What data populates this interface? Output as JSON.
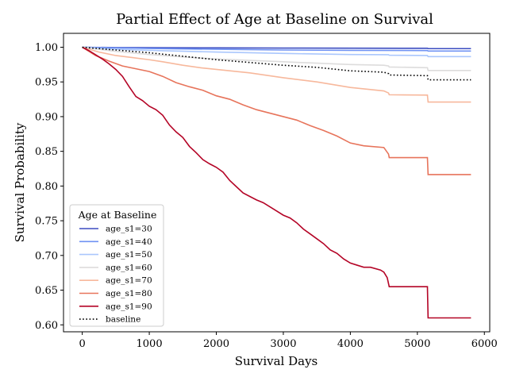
{
  "chart_data": {
    "type": "line",
    "title": "Partial Effect of Age at Baseline on Survival",
    "xlabel": "Survival Days",
    "ylabel": "Survival Probability",
    "xlim": [
      -280,
      6080
    ],
    "ylim": [
      0.59,
      1.02
    ],
    "xticks": [
      0,
      1000,
      2000,
      3000,
      4000,
      5000,
      6000
    ],
    "yticks": [
      0.6,
      0.65,
      0.7,
      0.75,
      0.8,
      0.85,
      0.9,
      0.95,
      1.0
    ],
    "xtick_labels": [
      "0",
      "1000",
      "2000",
      "3000",
      "4000",
      "5000",
      "6000"
    ],
    "ytick_labels": [
      "0.60",
      "0.65",
      "0.70",
      "0.75",
      "0.80",
      "0.85",
      "0.90",
      "0.95",
      "1.00"
    ],
    "grid": false,
    "legend": {
      "title": "Age at Baseline",
      "position": "lower-left"
    },
    "series": [
      {
        "name": "age_s1=30",
        "color": "#3b4cc0",
        "dash": "solid",
        "points": [
          [
            0,
            1.0
          ],
          [
            500,
            0.9995
          ],
          [
            1000,
            0.9993
          ],
          [
            2000,
            0.999
          ],
          [
            3000,
            0.9988
          ],
          [
            4000,
            0.9986
          ],
          [
            5150,
            0.9985
          ],
          [
            5160,
            0.998
          ],
          [
            5800,
            0.998
          ]
        ]
      },
      {
        "name": "age_s1=40",
        "color": "#6f92f3",
        "dash": "solid",
        "points": [
          [
            0,
            1.0
          ],
          [
            500,
            0.999
          ],
          [
            1000,
            0.9982
          ],
          [
            2000,
            0.997
          ],
          [
            3000,
            0.996
          ],
          [
            4000,
            0.9955
          ],
          [
            5150,
            0.9952
          ],
          [
            5160,
            0.9945
          ],
          [
            5800,
            0.9945
          ]
        ]
      },
      {
        "name": "age_s1=50",
        "color": "#aac7fd",
        "dash": "solid",
        "points": [
          [
            0,
            1.0
          ],
          [
            500,
            0.997
          ],
          [
            1000,
            0.9955
          ],
          [
            2000,
            0.993
          ],
          [
            3000,
            0.991
          ],
          [
            4000,
            0.9895
          ],
          [
            4570,
            0.9892
          ],
          [
            4580,
            0.9885
          ],
          [
            5150,
            0.988
          ],
          [
            5160,
            0.9865
          ],
          [
            5800,
            0.9865
          ]
        ]
      },
      {
        "name": "age_s1=60",
        "color": "#dddcdc",
        "dash": "solid",
        "points": [
          [
            0,
            1.0
          ],
          [
            500,
            0.994
          ],
          [
            1000,
            0.9895
          ],
          [
            1500,
            0.986
          ],
          [
            2000,
            0.983
          ],
          [
            2500,
            0.981
          ],
          [
            3000,
            0.979
          ],
          [
            3500,
            0.977
          ],
          [
            4000,
            0.975
          ],
          [
            4500,
            0.974
          ],
          [
            4570,
            0.973
          ],
          [
            4580,
            0.9715
          ],
          [
            5150,
            0.9705
          ],
          [
            5160,
            0.9665
          ],
          [
            5800,
            0.9665
          ]
        ]
      },
      {
        "name": "age_s1=70",
        "color": "#f7b89c",
        "dash": "solid",
        "points": [
          [
            0,
            1.0
          ],
          [
            250,
            0.993
          ],
          [
            500,
            0.988
          ],
          [
            750,
            0.985
          ],
          [
            1000,
            0.982
          ],
          [
            1200,
            0.979
          ],
          [
            1500,
            0.974
          ],
          [
            1800,
            0.97
          ],
          [
            2000,
            0.968
          ],
          [
            2500,
            0.963
          ],
          [
            3000,
            0.956
          ],
          [
            3500,
            0.95
          ],
          [
            4000,
            0.942
          ],
          [
            4200,
            0.94
          ],
          [
            4500,
            0.937
          ],
          [
            4570,
            0.934
          ],
          [
            4580,
            0.9315
          ],
          [
            5150,
            0.931
          ],
          [
            5160,
            0.921
          ],
          [
            5800,
            0.921
          ]
        ]
      },
      {
        "name": "age_s1=80",
        "color": "#e7745b",
        "dash": "solid",
        "points": [
          [
            0,
            1.0
          ],
          [
            200,
            0.988
          ],
          [
            400,
            0.98
          ],
          [
            600,
            0.973
          ],
          [
            800,
            0.969
          ],
          [
            1000,
            0.965
          ],
          [
            1200,
            0.958
          ],
          [
            1400,
            0.949
          ],
          [
            1600,
            0.943
          ],
          [
            1800,
            0.938
          ],
          [
            2000,
            0.93
          ],
          [
            2200,
            0.925
          ],
          [
            2400,
            0.917
          ],
          [
            2600,
            0.91
          ],
          [
            2800,
            0.905
          ],
          [
            3000,
            0.9
          ],
          [
            3200,
            0.895
          ],
          [
            3400,
            0.887
          ],
          [
            3600,
            0.88
          ],
          [
            3800,
            0.872
          ],
          [
            4000,
            0.862
          ],
          [
            4200,
            0.858
          ],
          [
            4500,
            0.8555
          ],
          [
            4570,
            0.846
          ],
          [
            4580,
            0.841
          ],
          [
            5150,
            0.841
          ],
          [
            5160,
            0.8165
          ],
          [
            5800,
            0.8165
          ]
        ]
      },
      {
        "name": "age_s1=90",
        "color": "#b40426",
        "dash": "solid",
        "points": [
          [
            0,
            1.0
          ],
          [
            100,
            0.995
          ],
          [
            200,
            0.989
          ],
          [
            300,
            0.983
          ],
          [
            400,
            0.976
          ],
          [
            500,
            0.968
          ],
          [
            600,
            0.958
          ],
          [
            700,
            0.943
          ],
          [
            800,
            0.929
          ],
          [
            900,
            0.923
          ],
          [
            1000,
            0.915
          ],
          [
            1100,
            0.91
          ],
          [
            1200,
            0.902
          ],
          [
            1300,
            0.888
          ],
          [
            1400,
            0.878
          ],
          [
            1500,
            0.87
          ],
          [
            1600,
            0.857
          ],
          [
            1700,
            0.848
          ],
          [
            1800,
            0.838
          ],
          [
            1900,
            0.832
          ],
          [
            2000,
            0.827
          ],
          [
            2100,
            0.82
          ],
          [
            2200,
            0.808
          ],
          [
            2300,
            0.799
          ],
          [
            2400,
            0.79
          ],
          [
            2500,
            0.785
          ],
          [
            2600,
            0.78
          ],
          [
            2700,
            0.776
          ],
          [
            2800,
            0.77
          ],
          [
            2900,
            0.764
          ],
          [
            3000,
            0.758
          ],
          [
            3100,
            0.754
          ],
          [
            3200,
            0.747
          ],
          [
            3300,
            0.738
          ],
          [
            3400,
            0.731
          ],
          [
            3500,
            0.724
          ],
          [
            3600,
            0.717
          ],
          [
            3700,
            0.708
          ],
          [
            3800,
            0.703
          ],
          [
            3900,
            0.695
          ],
          [
            4000,
            0.689
          ],
          [
            4100,
            0.686
          ],
          [
            4200,
            0.683
          ],
          [
            4300,
            0.683
          ],
          [
            4450,
            0.679
          ],
          [
            4500,
            0.676
          ],
          [
            4550,
            0.668
          ],
          [
            4580,
            0.655
          ],
          [
            5150,
            0.655
          ],
          [
            5160,
            0.61
          ],
          [
            5800,
            0.61
          ]
        ]
      },
      {
        "name": "baseline",
        "color": "#000000",
        "dash": "dotted",
        "points": [
          [
            0,
            1.0
          ],
          [
            500,
            0.996
          ],
          [
            1000,
            0.992
          ],
          [
            1500,
            0.987
          ],
          [
            2000,
            0.982
          ],
          [
            2500,
            0.978
          ],
          [
            3000,
            0.974
          ],
          [
            3500,
            0.971
          ],
          [
            4000,
            0.966
          ],
          [
            4500,
            0.964
          ],
          [
            4570,
            0.962
          ],
          [
            4580,
            0.96
          ],
          [
            5150,
            0.959
          ],
          [
            5160,
            0.953
          ],
          [
            5800,
            0.953
          ]
        ]
      }
    ]
  }
}
